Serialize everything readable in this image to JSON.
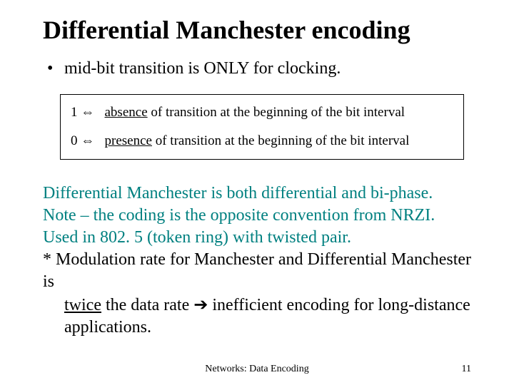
{
  "title": "Differential Manchester encoding",
  "bullet": {
    "dot": "•",
    "text": "mid-bit transition is ONLY for clocking."
  },
  "box": {
    "row1": {
      "bit": "1",
      "arrow": "⇔",
      "lead": "absence",
      "rest": " of transition at the beginning of the bit interval"
    },
    "row2": {
      "bit": "0",
      "arrow": "⇔",
      "lead": "presence",
      "rest": " of transition at the beginning of the bit interval"
    }
  },
  "body": {
    "line1": "Differential Manchester is both differential and bi-phase.",
    "line2": "Note – the coding is the opposite convention from NRZI.",
    "line3": "Used in 802. 5 (token ring) with twisted pair.",
    "star": "* Modulation rate for Manchester and Differential Manchester is",
    "star_cont1_pre": "twice",
    "star_cont1_post": " the data rate ",
    "arrow": "➔",
    "star_cont1_tail": " inefficient encoding for long-distance",
    "star_cont2": "applications."
  },
  "footer": {
    "center": "Networks: Data Encoding",
    "page": "11"
  },
  "colors": {
    "teal": "#008080",
    "text": "#000000",
    "bg": "#ffffff",
    "border": "#000000"
  }
}
